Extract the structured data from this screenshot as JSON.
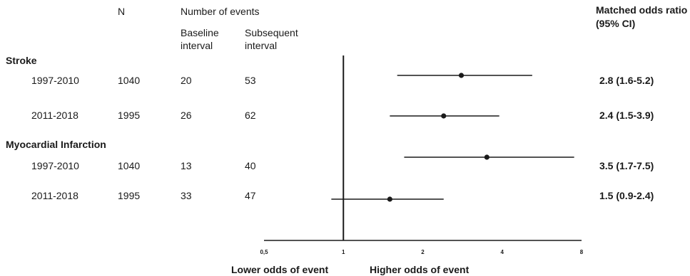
{
  "headers": {
    "n": "N",
    "events": "Number of events",
    "baseline": [
      "Baseline",
      "interval"
    ],
    "subsequent": [
      "Subsequent",
      "interval"
    ],
    "odds": [
      "Matched odds ratio",
      "(95% CI)"
    ]
  },
  "groups": [
    "Stroke",
    "Myocardial Infarction"
  ],
  "rows": [
    {
      "period": "1997-2010",
      "n": "1040",
      "baseline": "20",
      "subsequent": "53",
      "or_text": "2.8 (1.6-5.2)"
    },
    {
      "period": "2011-2018",
      "n": "1995",
      "baseline": "26",
      "subsequent": "62",
      "or_text": "2.4 (1.5-3.9)"
    },
    {
      "period": "1997-2010",
      "n": "1040",
      "baseline": "13",
      "subsequent": "40",
      "or_text": "3.5 (1.7-7.5)"
    },
    {
      "period": "2011-2018",
      "n": "1995",
      "baseline": "33",
      "subsequent": "47",
      "or_text": "1.5 (0.9-2.4)"
    }
  ],
  "footer": {
    "lower": "Lower odds of event",
    "higher": "Higher odds of event"
  },
  "chart_data": {
    "type": "forest",
    "x_scale": "log",
    "xlim": [
      0.5,
      8
    ],
    "x_ticks": [
      {
        "value": 0.5,
        "label": "0,5"
      },
      {
        "value": 1,
        "label": "1"
      },
      {
        "value": 2,
        "label": "2"
      },
      {
        "value": 4,
        "label": "4"
      },
      {
        "value": 8,
        "label": "8"
      }
    ],
    "reference_line": 1,
    "points": [
      {
        "estimate": 2.8,
        "lower": 1.6,
        "upper": 5.2
      },
      {
        "estimate": 2.4,
        "lower": 1.5,
        "upper": 3.9
      },
      {
        "estimate": 3.5,
        "lower": 1.7,
        "upper": 7.5
      },
      {
        "estimate": 1.5,
        "lower": 0.9,
        "upper": 2.4
      }
    ],
    "colors": {
      "ink": "#1a1a1a"
    }
  }
}
